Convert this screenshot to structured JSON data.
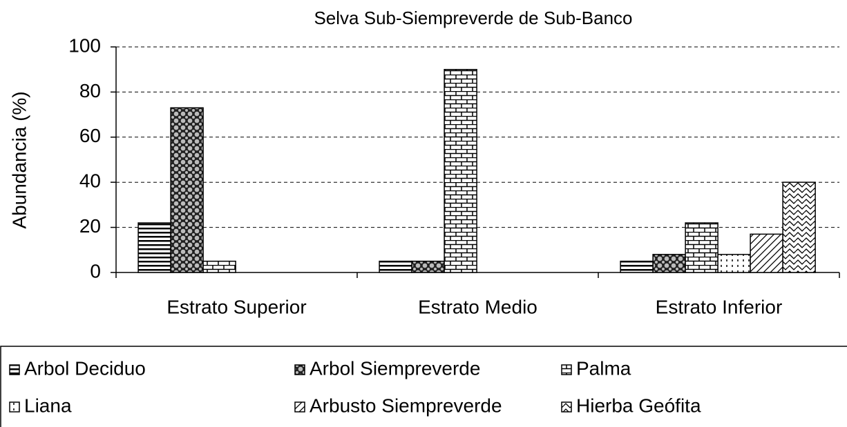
{
  "chart_data": {
    "type": "bar",
    "title": "Selva Sub-Siempreverde de Sub-Banco",
    "y_label": "Abundancia (%)",
    "categories": [
      "Estrato Superior",
      "Estrato Medio",
      "Estrato Inferior"
    ],
    "series": [
      {
        "name": "Arbol Deciduo",
        "color": "#000000",
        "pattern": "horizontal",
        "values": [
          22,
          5,
          5
        ]
      },
      {
        "name": "Arbol Siempreverde",
        "color": "#000000",
        "pattern": "dots",
        "values": [
          73,
          5,
          8
        ]
      },
      {
        "name": "Palma",
        "color": "#000000",
        "pattern": "brick",
        "values": [
          5,
          90,
          22
        ]
      },
      {
        "name": "Liana",
        "color": "#000000",
        "pattern": "dashed-vertical",
        "values": [
          null,
          null,
          8
        ]
      },
      {
        "name": "Arbusto Siempreverde",
        "color": "#000000",
        "pattern": "diagonal",
        "values": [
          null,
          null,
          17
        ]
      },
      {
        "name": "Hierba Geófita",
        "color": "#000000",
        "pattern": "wave",
        "values": [
          null,
          null,
          40
        ]
      }
    ],
    "ylim": [
      0,
      100
    ],
    "yticks": [
      0,
      20,
      40,
      60,
      80,
      100
    ],
    "grid": true
  }
}
